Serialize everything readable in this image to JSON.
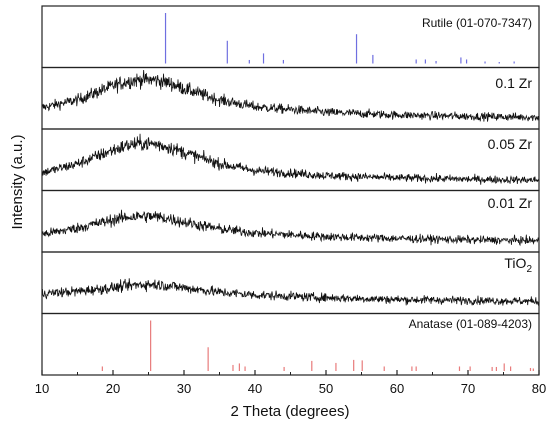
{
  "chart_data": {
    "type": "line",
    "title": "",
    "xlabel": "2 Theta (degrees)",
    "ylabel": "Intensity (a.u.)",
    "xlim": [
      10,
      80
    ],
    "xticks": [
      "10",
      "20",
      "30",
      "40",
      "50",
      "60",
      "70",
      "80"
    ],
    "grid": false,
    "reference_panels": [
      {
        "name": "Rutile (01-070-7347)",
        "color": "#6f6fe0",
        "peaks_x": [
          27.4,
          36.1,
          39.2,
          41.2,
          44.0,
          54.3,
          56.6,
          62.7,
          64.0,
          65.5,
          69.0,
          69.8,
          72.4,
          74.4,
          76.5
        ],
        "peaks_rel_intensity": [
          100,
          45,
          7,
          20,
          7,
          58,
          17,
          8,
          8,
          5,
          12,
          8,
          4,
          3,
          4
        ]
      },
      {
        "name": "Anatase (01-089-4203)",
        "color": "#e87b7b",
        "peaks_x": [
          18.5,
          25.3,
          33.4,
          36.9,
          37.8,
          38.6,
          44.1,
          48.0,
          51.4,
          53.9,
          55.1,
          58.2,
          62.1,
          62.7,
          68.8,
          70.3,
          73.4,
          74.0,
          75.1,
          76.0,
          78.8,
          79.2
        ],
        "peaks_rel_intensity": [
          9,
          100,
          47,
          12,
          15,
          9,
          8,
          20,
          16,
          22,
          21,
          9,
          9,
          9,
          9,
          9,
          8,
          8,
          15,
          9,
          6,
          5
        ]
      }
    ],
    "series": [
      {
        "name": "0.1 Zr",
        "x": [
          10,
          15,
          20,
          22,
          24,
          26,
          28,
          30,
          35,
          40,
          50,
          60,
          70,
          80
        ],
        "y": [
          0.38,
          0.55,
          0.86,
          0.96,
          1.0,
          0.99,
          0.92,
          0.8,
          0.55,
          0.4,
          0.28,
          0.22,
          0.19,
          0.17
        ]
      },
      {
        "name": "0.05 Zr",
        "x": [
          10,
          15,
          20,
          22,
          24,
          26,
          28,
          30,
          35,
          40,
          50,
          60,
          70,
          80
        ],
        "y": [
          0.3,
          0.5,
          0.8,
          0.9,
          0.95,
          0.93,
          0.86,
          0.75,
          0.5,
          0.35,
          0.24,
          0.19,
          0.16,
          0.14
        ]
      },
      {
        "name": "0.01 Zr",
        "x": [
          10,
          15,
          20,
          22,
          24,
          26,
          28,
          30,
          35,
          40,
          50,
          60,
          70,
          80
        ],
        "y": [
          0.3,
          0.44,
          0.62,
          0.68,
          0.7,
          0.69,
          0.64,
          0.57,
          0.42,
          0.33,
          0.25,
          0.21,
          0.18,
          0.16
        ]
      },
      {
        "name_main": "TiO",
        "name_sub": "2",
        "x": [
          10,
          15,
          20,
          22,
          24,
          26,
          28,
          30,
          35,
          40,
          50,
          60,
          70,
          80
        ],
        "y": [
          0.35,
          0.4,
          0.48,
          0.52,
          0.55,
          0.55,
          0.52,
          0.48,
          0.38,
          0.32,
          0.26,
          0.22,
          0.2,
          0.18
        ]
      }
    ]
  }
}
